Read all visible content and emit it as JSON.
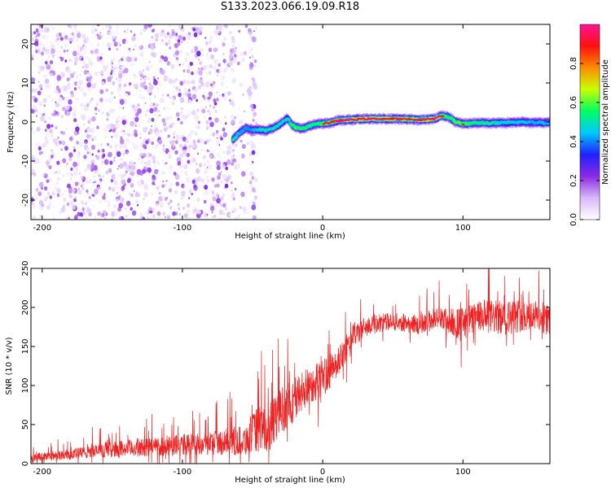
{
  "title": "S133.2023.066.19.09.R18",
  "colors": {
    "scatter": "#8a2be2",
    "snr_line": "#ee2222",
    "axis": "#000000"
  },
  "chart_data": [
    {
      "type": "heatmap",
      "title": "S133.2023.066.19.09.R18",
      "xlabel": "Height of straight line (km)",
      "ylabel": "Frequency (Hz)",
      "xlim": [
        -208,
        162
      ],
      "ylim": [
        -25,
        25
      ],
      "xticks": [
        -200,
        -100,
        0,
        100
      ],
      "xtick_labels": [
        "-200",
        "-100",
        "0",
        "100"
      ],
      "yticks": [
        -20,
        -10,
        0,
        10,
        20
      ],
      "ytick_labels": [
        "-20",
        "-10",
        "0",
        "10",
        "20"
      ],
      "colorbar": {
        "label": "Normalized spectral amplitude",
        "range": [
          0.0,
          1.0
        ],
        "ticks": [
          0.0,
          0.2,
          0.4,
          0.6,
          0.8
        ],
        "tick_labels": [
          "0.0",
          "0.2",
          "0.4",
          "0.6",
          "0.8"
        ],
        "colormap": [
          "#ffffff",
          "#d8b8f8",
          "#8a2be2",
          "#2020ff",
          "#00c8ff",
          "#00ff60",
          "#c8ff00",
          "#ff8c00",
          "#ff1010",
          "#ff1493"
        ]
      },
      "noise_region_km": [
        -208,
        -47
      ],
      "signal_track": {
        "x": [
          -64,
          -60,
          -55,
          -50,
          -45,
          -40,
          -35,
          -30,
          -25,
          -22,
          -18,
          -14,
          -10,
          -5,
          0,
          5,
          10,
          20,
          30,
          40,
          50,
          60,
          70,
          80,
          85,
          90,
          95,
          100,
          110,
          120,
          130,
          140,
          150,
          162
        ],
        "y": [
          -4.5,
          -3,
          -1.5,
          -2,
          -2,
          -2.2,
          -1.5,
          -0.5,
          1,
          -0.8,
          -1.5,
          -1.7,
          -1,
          -0.6,
          -0.4,
          -0.2,
          0.3,
          0.6,
          0.8,
          0.8,
          0.8,
          0.7,
          0.6,
          0.8,
          1.7,
          1.2,
          0,
          -0.5,
          -0.2,
          -0.3,
          -0.2,
          0,
          -0.1,
          -0.2
        ],
        "amplitude": [
          0.6,
          0.5,
          0.45,
          0.45,
          0.55,
          0.6,
          0.6,
          0.55,
          0.55,
          0.7,
          0.75,
          0.7,
          0.7,
          0.65,
          0.75,
          0.8,
          0.85,
          0.9,
          0.9,
          0.88,
          0.85,
          0.8,
          0.85,
          0.9,
          0.75,
          0.7,
          0.7,
          0.75,
          0.65,
          0.6,
          0.55,
          0.55,
          0.5,
          0.5
        ]
      }
    },
    {
      "type": "line",
      "xlabel": "Height of straight line (km)",
      "ylabel": "SNR (10 * v/v)",
      "xlim": [
        -208,
        162
      ],
      "ylim": [
        0,
        250
      ],
      "xticks": [
        -200,
        -100,
        0,
        100
      ],
      "xtick_labels": [
        "-200",
        "-100",
        "0",
        "100"
      ],
      "yticks": [
        0,
        50,
        100,
        150,
        200,
        250
      ],
      "ytick_labels": [
        "0",
        "50",
        "100",
        "150",
        "200",
        "250"
      ],
      "series": [
        {
          "name": "SNR",
          "x": [
            -208,
            -180,
            -150,
            -120,
            -90,
            -70,
            -55,
            -50,
            -45,
            -40,
            -30,
            -20,
            -10,
            0,
            10,
            20,
            30,
            40,
            50,
            60,
            70,
            80,
            90,
            100,
            110,
            120,
            130,
            140,
            150,
            162
          ],
          "y_mean": [
            8,
            12,
            18,
            22,
            25,
            28,
            30,
            40,
            45,
            40,
            68,
            82,
            100,
            110,
            125,
            160,
            175,
            180,
            182,
            180,
            178,
            186,
            182,
            180,
            188,
            188,
            186,
            190,
            190,
            185
          ],
          "noise_amplitude": [
            5,
            7,
            10,
            13,
            15,
            17,
            20,
            25,
            30,
            30,
            30,
            30,
            25,
            25,
            20,
            15,
            13,
            12,
            11,
            12,
            13,
            15,
            18,
            20,
            20,
            22,
            22,
            22,
            20,
            20
          ]
        }
      ]
    }
  ]
}
